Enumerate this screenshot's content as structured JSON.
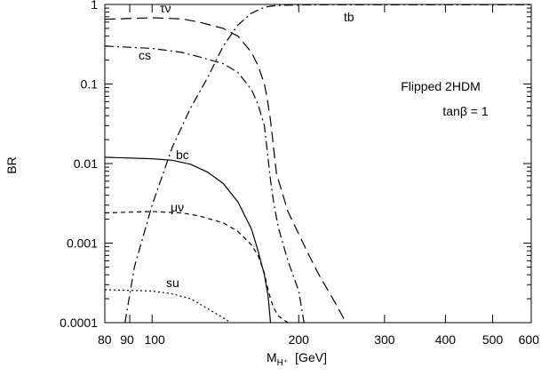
{
  "chart_data": {
    "type": "line",
    "annotations": [
      "Flipped 2HDM",
      "tanβ = 1"
    ],
    "xlabel": {
      "main": "M",
      "sub": "H⁺",
      "unit": "[GeV]"
    },
    "ylabel": "BR",
    "x_scale": "log",
    "y_scale": "log",
    "xlim": [
      80,
      600
    ],
    "ylim": [
      0.0001,
      1
    ],
    "x_ticks": [
      {
        "value": 80,
        "label": "80"
      },
      {
        "value": 90,
        "label": "90"
      },
      {
        "value": 100,
        "label": "100"
      },
      {
        "value": 200,
        "label": "200"
      },
      {
        "value": 300,
        "label": "300"
      },
      {
        "value": 400,
        "label": "400"
      },
      {
        "value": 500,
        "label": "500"
      },
      {
        "value": 600,
        "label": "600"
      }
    ],
    "y_ticks": [
      {
        "value": 0.0001,
        "label": "0.0001"
      },
      {
        "value": 0.001,
        "label": "0.001"
      },
      {
        "value": 0.01,
        "label": "0.01"
      },
      {
        "value": 0.1,
        "label": "0.1"
      },
      {
        "value": 1,
        "label": "1"
      }
    ],
    "grid": false,
    "series": [
      {
        "name": "τν",
        "dash": "12,6",
        "x": [
          80,
          100,
          115,
          125,
          140,
          150,
          160,
          165,
          170,
          172,
          175,
          180,
          190,
          200,
          210,
          220,
          240,
          250
        ],
        "y": [
          0.65,
          0.68,
          0.66,
          0.6,
          0.5,
          0.4,
          0.25,
          0.17,
          0.1,
          0.07,
          0.035,
          0.0075,
          0.0025,
          0.0013,
          0.0007,
          0.0004,
          0.00016,
          0.0001
        ]
      },
      {
        "name": "cs",
        "dash": "10,4,2,4",
        "x": [
          80,
          100,
          115,
          125,
          140,
          150,
          160,
          165,
          170,
          172,
          175,
          178,
          182,
          190,
          200,
          205
        ],
        "y": [
          0.3,
          0.28,
          0.25,
          0.22,
          0.18,
          0.14,
          0.085,
          0.055,
          0.03,
          0.016,
          0.0062,
          0.003,
          0.0015,
          0.0006,
          0.00025,
          0.0001
        ]
      },
      {
        "name": "tb",
        "dash": "10,4,2,4",
        "x": [
          88,
          92,
          100,
          110,
          120,
          130,
          140,
          150,
          160,
          170,
          175,
          180,
          190,
          200,
          220,
          250,
          300,
          400,
          600
        ],
        "y": [
          0.0001,
          0.0005,
          0.003,
          0.016,
          0.05,
          0.12,
          0.3,
          0.55,
          0.78,
          0.92,
          0.95,
          0.97,
          0.98,
          0.985,
          0.99,
          0.99,
          0.99,
          0.99,
          0.99
        ]
      },
      {
        "name": "bc",
        "dash": "",
        "x": [
          80,
          100,
          110,
          120,
          130,
          140,
          150,
          160,
          165,
          170,
          173,
          174,
          175
        ],
        "y": [
          0.012,
          0.0115,
          0.011,
          0.0098,
          0.0078,
          0.0056,
          0.0033,
          0.0015,
          0.0008,
          0.0004,
          0.00022,
          0.00015,
          0.0001
        ]
      },
      {
        "name": "μν",
        "dash": "5,4",
        "x": [
          80,
          100,
          115,
          125,
          140,
          150,
          160,
          165,
          170,
          172,
          175,
          178,
          182,
          190
        ],
        "y": [
          0.0024,
          0.0025,
          0.0024,
          0.0022,
          0.0018,
          0.0014,
          0.00095,
          0.0007,
          0.00042,
          0.0003,
          0.0002,
          0.00015,
          0.00012,
          0.0001
        ]
      },
      {
        "name": "su",
        "dash": "2,3",
        "x": [
          80,
          100,
          110,
          120,
          130,
          140,
          145
        ],
        "y": [
          0.00026,
          0.00025,
          0.00023,
          0.0002,
          0.00015,
          0.000115,
          0.0001
        ]
      }
    ]
  }
}
